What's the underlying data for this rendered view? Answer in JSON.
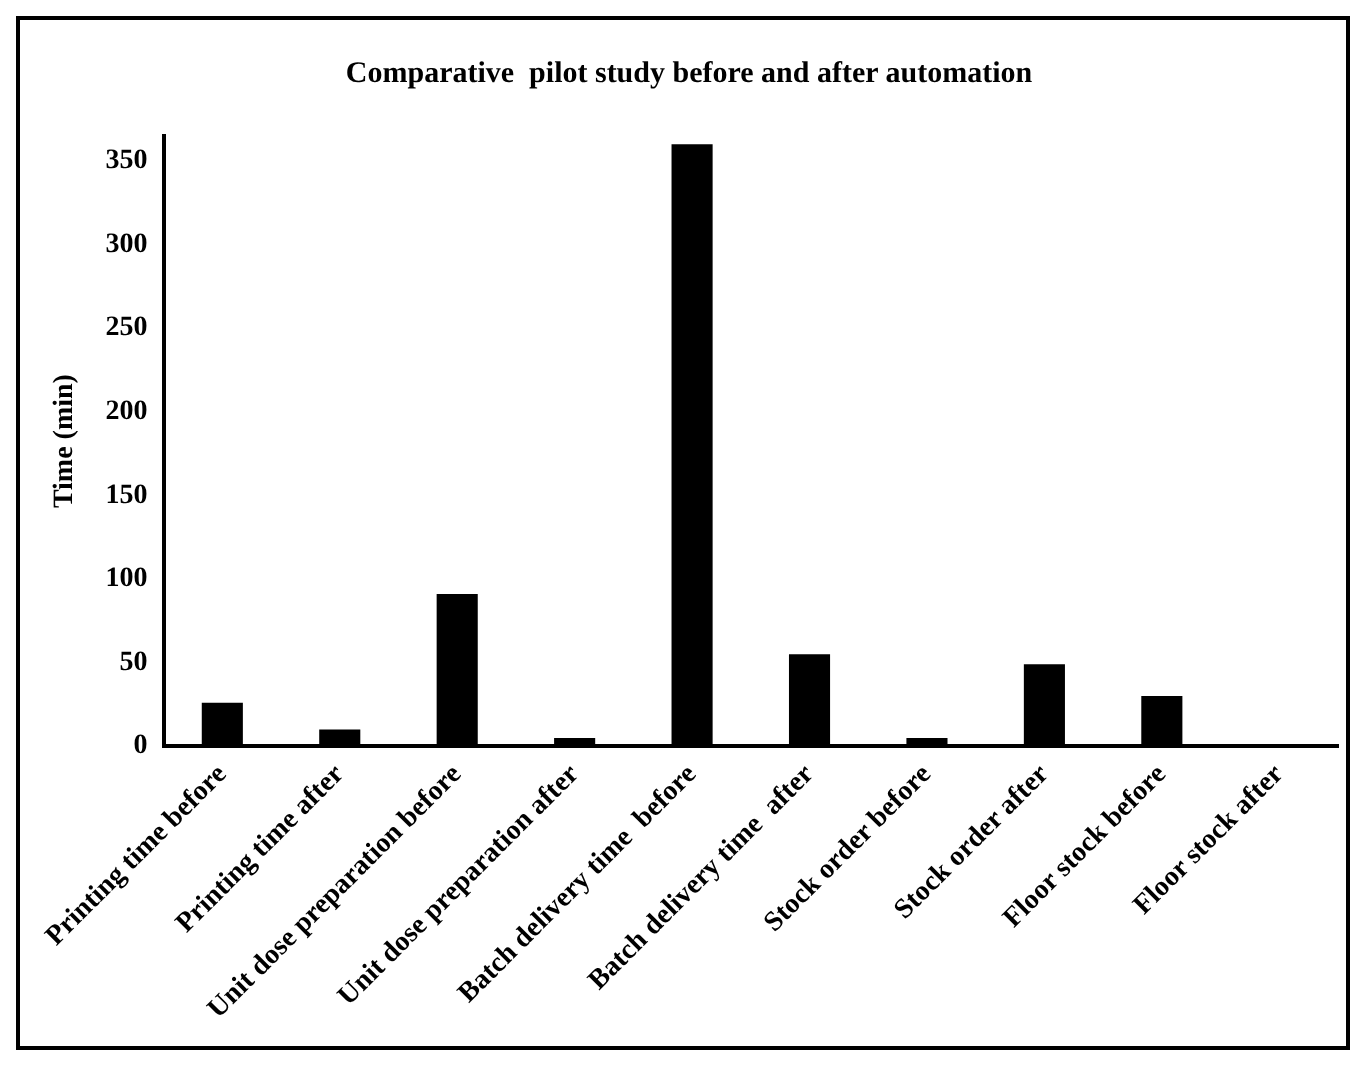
{
  "chart_data": {
    "type": "bar",
    "title": "Comparative  pilot study before and after automation",
    "ylabel": "Time (min)",
    "categories": [
      "Printing time before",
      "Printing time after",
      "Unit dose preparation before",
      "Unit dose preparation after",
      "Batch delivery time  before",
      "Batch delivery time  after",
      "Stock order before",
      "Stock order after",
      "Floor stock before",
      "Floor stock after"
    ],
    "values": [
      26,
      10,
      91,
      5,
      360,
      55,
      5,
      49,
      30,
      0
    ],
    "color": "#000000",
    "ylim": [
      0,
      365
    ],
    "yticks": [
      0,
      50,
      100,
      150,
      200,
      250,
      300,
      350
    ],
    "grid": false,
    "legend": false
  }
}
